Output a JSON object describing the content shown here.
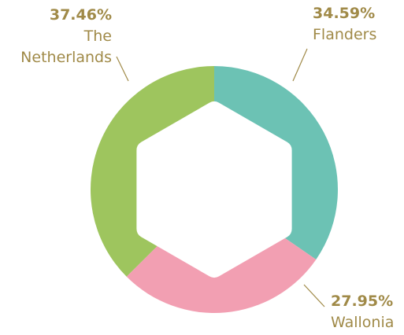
{
  "chart_data": {
    "type": "donut",
    "categories": [
      "Flanders",
      "Wallonia",
      "The Netherlands"
    ],
    "values": [
      34.59,
      27.95,
      37.46
    ],
    "value_labels": [
      "34.59%",
      "27.95%",
      "37.46%"
    ],
    "colors": [
      "#6cc2b4",
      "#f29fb2",
      "#9ec55e"
    ]
  }
}
